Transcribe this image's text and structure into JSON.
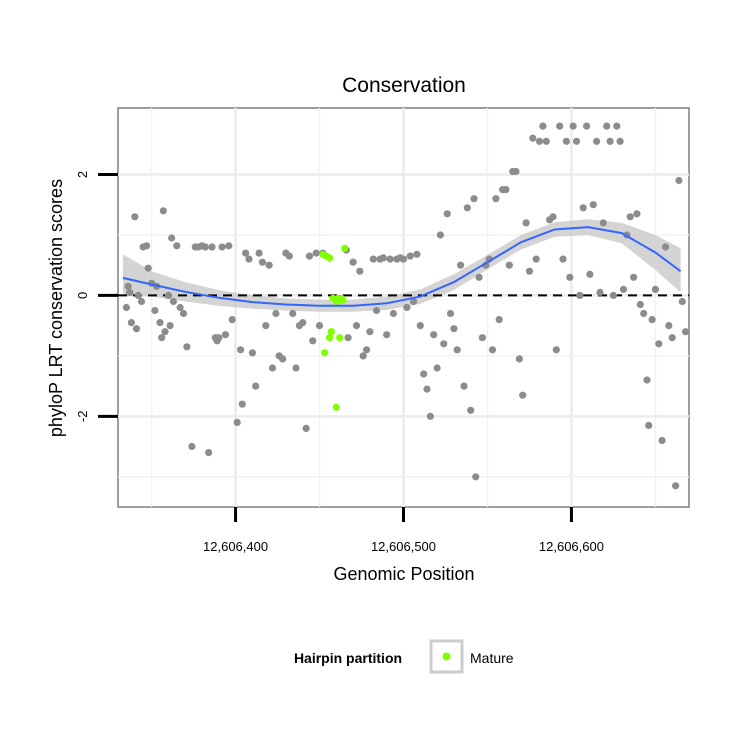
{
  "chart_data": {
    "type": "scatter",
    "title": "Conservation",
    "xlabel": "Genomic Position",
    "ylabel": "phyloP LRT conservation scores",
    "xlim": [
      12606330,
      12606670
    ],
    "ylim": [
      -3.5,
      3.1
    ],
    "xticks": [
      {
        "value": 12606400,
        "label": "12,606,400"
      },
      {
        "value": 12606500,
        "label": "12,606,500"
      },
      {
        "value": 12606600,
        "label": "12,606,600"
      }
    ],
    "yticks": [
      {
        "value": -2,
        "label": "-2"
      },
      {
        "value": 0,
        "label": "0"
      },
      {
        "value": 2,
        "label": "2"
      }
    ],
    "grid": true,
    "reference_line": {
      "y": 0,
      "style": "dashed"
    },
    "legend": {
      "title": "Hairpin partition",
      "placement": "bottom",
      "entries": [
        {
          "label": "Mature",
          "color": "#7fff00"
        }
      ]
    },
    "colors": {
      "other": "#8c8c8c",
      "mature": "#7fff00",
      "smooth": "#3366ff",
      "band": "#cccccc"
    },
    "smooth": {
      "x": [
        12606333,
        12606350,
        12606370,
        12606390,
        12606410,
        12606430,
        12606450,
        12606470,
        12606490,
        12606510,
        12606530,
        12606550,
        12606570,
        12606590,
        12606610,
        12606630,
        12606650,
        12606665
      ],
      "y": [
        0.29,
        0.18,
        0.06,
        -0.04,
        -0.11,
        -0.15,
        -0.17,
        -0.17,
        -0.13,
        -0.02,
        0.22,
        0.55,
        0.88,
        1.09,
        1.13,
        1.03,
        0.71,
        0.4
      ],
      "lower": [
        0.0,
        -0.02,
        -0.1,
        -0.17,
        -0.22,
        -0.25,
        -0.27,
        -0.27,
        -0.24,
        -0.14,
        0.09,
        0.43,
        0.76,
        0.97,
        1.0,
        0.86,
        0.42,
        0.05
      ],
      "upper": [
        0.68,
        0.4,
        0.22,
        0.09,
        0.0,
        -0.05,
        -0.07,
        -0.07,
        -0.02,
        0.1,
        0.35,
        0.67,
        1.0,
        1.21,
        1.26,
        1.2,
        1.0,
        0.78
      ]
    },
    "series": [
      {
        "name": "Other",
        "points": [
          [
            12606335,
            -0.2
          ],
          [
            12606336,
            0.15
          ],
          [
            12606337,
            0.05
          ],
          [
            12606338,
            -0.45
          ],
          [
            12606340,
            1.3
          ],
          [
            12606341,
            -0.55
          ],
          [
            12606342,
            0.0
          ],
          [
            12606344,
            -0.1
          ],
          [
            12606345,
            0.8
          ],
          [
            12606347,
            0.82
          ],
          [
            12606348,
            0.45
          ],
          [
            12606350,
            0.2
          ],
          [
            12606352,
            -0.25
          ],
          [
            12606353,
            0.15
          ],
          [
            12606355,
            -0.45
          ],
          [
            12606356,
            -0.7
          ],
          [
            12606357,
            1.4
          ],
          [
            12606358,
            -0.6
          ],
          [
            12606360,
            0.0
          ],
          [
            12606361,
            -0.5
          ],
          [
            12606362,
            0.95
          ],
          [
            12606363,
            -0.1
          ],
          [
            12606365,
            0.82
          ],
          [
            12606367,
            -0.2
          ],
          [
            12606369,
            -0.3
          ],
          [
            12606371,
            -0.85
          ],
          [
            12606374,
            -2.5
          ],
          [
            12606376,
            0.8
          ],
          [
            12606378,
            0.8
          ],
          [
            12606380,
            0.82
          ],
          [
            12606382,
            0.8
          ],
          [
            12606384,
            -2.6
          ],
          [
            12606386,
            0.8
          ],
          [
            12606388,
            -0.7
          ],
          [
            12606389,
            -0.75
          ],
          [
            12606390,
            -0.7
          ],
          [
            12606392,
            0.8
          ],
          [
            12606394,
            -0.65
          ],
          [
            12606396,
            0.82
          ],
          [
            12606398,
            -0.4
          ],
          [
            12606401,
            -2.1
          ],
          [
            12606403,
            -0.9
          ],
          [
            12606404,
            -1.8
          ],
          [
            12606406,
            0.7
          ],
          [
            12606408,
            0.6
          ],
          [
            12606410,
            -0.95
          ],
          [
            12606412,
            -1.5
          ],
          [
            12606414,
            0.7
          ],
          [
            12606416,
            0.55
          ],
          [
            12606418,
            -0.5
          ],
          [
            12606420,
            0.5
          ],
          [
            12606422,
            -1.2
          ],
          [
            12606424,
            -0.3
          ],
          [
            12606426,
            -1.0
          ],
          [
            12606428,
            -1.05
          ],
          [
            12606430,
            0.7
          ],
          [
            12606432,
            0.65
          ],
          [
            12606434,
            -0.3
          ],
          [
            12606436,
            -1.2
          ],
          [
            12606438,
            -0.5
          ],
          [
            12606440,
            -0.45
          ],
          [
            12606442,
            -2.2
          ],
          [
            12606444,
            0.65
          ],
          [
            12606446,
            -0.75
          ],
          [
            12606448,
            0.7
          ],
          [
            12606450,
            -0.5
          ],
          [
            12606452,
            0.7
          ],
          [
            12606466,
            0.75
          ],
          [
            12606467,
            -0.7
          ],
          [
            12606470,
            0.55
          ],
          [
            12606472,
            -0.5
          ],
          [
            12606474,
            0.4
          ],
          [
            12606476,
            -1.0
          ],
          [
            12606478,
            -0.9
          ],
          [
            12606480,
            -0.6
          ],
          [
            12606482,
            0.6
          ],
          [
            12606484,
            -0.25
          ],
          [
            12606486,
            0.6
          ],
          [
            12606488,
            0.62
          ],
          [
            12606490,
            -0.65
          ],
          [
            12606492,
            0.6
          ],
          [
            12606494,
            -0.3
          ],
          [
            12606496,
            0.6
          ],
          [
            12606498,
            0.62
          ],
          [
            12606500,
            0.6
          ],
          [
            12606502,
            -0.2
          ],
          [
            12606504,
            0.65
          ],
          [
            12606506,
            -0.1
          ],
          [
            12606508,
            0.68
          ],
          [
            12606510,
            -0.5
          ],
          [
            12606512,
            -1.3
          ],
          [
            12606514,
            -1.55
          ],
          [
            12606516,
            -2.0
          ],
          [
            12606518,
            -0.65
          ],
          [
            12606520,
            -1.2
          ],
          [
            12606522,
            1.0
          ],
          [
            12606524,
            -0.8
          ],
          [
            12606526,
            1.35
          ],
          [
            12606528,
            -0.3
          ],
          [
            12606530,
            -0.55
          ],
          [
            12606532,
            -0.9
          ],
          [
            12606534,
            0.5
          ],
          [
            12606536,
            -1.5
          ],
          [
            12606538,
            1.45
          ],
          [
            12606540,
            -1.9
          ],
          [
            12606542,
            1.6
          ],
          [
            12606543,
            -3.0
          ],
          [
            12606545,
            0.3
          ],
          [
            12606547,
            -0.7
          ],
          [
            12606549,
            0.5
          ],
          [
            12606551,
            0.6
          ],
          [
            12606553,
            -0.9
          ],
          [
            12606555,
            1.6
          ],
          [
            12606557,
            -0.4
          ],
          [
            12606559,
            1.75
          ],
          [
            12606561,
            1.75
          ],
          [
            12606563,
            0.5
          ],
          [
            12606565,
            2.05
          ],
          [
            12606567,
            2.05
          ],
          [
            12606569,
            -1.05
          ],
          [
            12606571,
            -1.65
          ],
          [
            12606573,
            1.2
          ],
          [
            12606575,
            0.4
          ],
          [
            12606577,
            2.6
          ],
          [
            12606579,
            0.6
          ],
          [
            12606581,
            2.55
          ],
          [
            12606583,
            2.8
          ],
          [
            12606585,
            2.55
          ],
          [
            12606587,
            1.25
          ],
          [
            12606589,
            1.3
          ],
          [
            12606591,
            -0.9
          ],
          [
            12606593,
            2.8
          ],
          [
            12606595,
            0.6
          ],
          [
            12606597,
            2.55
          ],
          [
            12606599,
            0.3
          ],
          [
            12606601,
            2.8
          ],
          [
            12606603,
            2.55
          ],
          [
            12606605,
            0.0
          ],
          [
            12606607,
            1.45
          ],
          [
            12606609,
            2.8
          ],
          [
            12606611,
            0.35
          ],
          [
            12606613,
            1.5
          ],
          [
            12606615,
            2.55
          ],
          [
            12606617,
            0.05
          ],
          [
            12606619,
            1.2
          ],
          [
            12606621,
            2.8
          ],
          [
            12606623,
            2.55
          ],
          [
            12606625,
            0.0
          ],
          [
            12606627,
            2.8
          ],
          [
            12606629,
            2.55
          ],
          [
            12606631,
            0.1
          ],
          [
            12606633,
            1.0
          ],
          [
            12606635,
            1.3
          ],
          [
            12606637,
            0.3
          ],
          [
            12606639,
            1.35
          ],
          [
            12606641,
            -0.15
          ],
          [
            12606643,
            -0.3
          ],
          [
            12606645,
            -1.4
          ],
          [
            12606646,
            -2.15
          ],
          [
            12606648,
            -0.4
          ],
          [
            12606650,
            0.1
          ],
          [
            12606652,
            -0.8
          ],
          [
            12606654,
            -2.4
          ],
          [
            12606656,
            0.8
          ],
          [
            12606658,
            -0.5
          ],
          [
            12606660,
            -0.7
          ],
          [
            12606662,
            -3.15
          ],
          [
            12606664,
            1.9
          ],
          [
            12606666,
            -0.1
          ],
          [
            12606668,
            -0.6
          ]
        ]
      },
      {
        "name": "Mature",
        "points": [
          [
            12606452,
            0.68
          ],
          [
            12606454,
            0.65
          ],
          [
            12606456,
            0.62
          ],
          [
            12606458,
            -0.05
          ],
          [
            12606460,
            -0.1
          ],
          [
            12606461,
            -0.05
          ],
          [
            12606462,
            -0.08
          ],
          [
            12606463,
            -0.05
          ],
          [
            12606464,
            -0.08
          ],
          [
            12606457,
            -0.6
          ],
          [
            12606456,
            -0.7
          ],
          [
            12606462,
            -0.7
          ],
          [
            12606453,
            -0.95
          ],
          [
            12606460,
            -1.85
          ],
          [
            12606465,
            0.78
          ]
        ]
      }
    ]
  }
}
